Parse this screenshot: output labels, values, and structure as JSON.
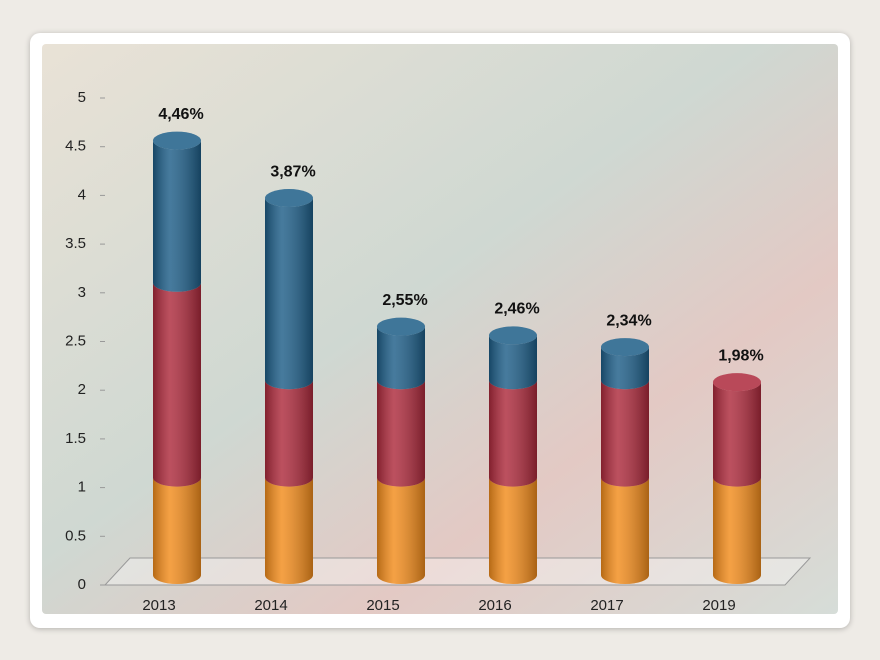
{
  "chart_data": {
    "type": "stacked-cylinder",
    "categories": [
      "2013",
      "2014",
      "2015",
      "2016",
      "2017",
      "2019"
    ],
    "series": [
      {
        "color": "#f28c1c",
        "values": [
          1,
          1,
          1,
          1,
          1,
          1
        ]
      },
      {
        "color": "#ad2a3c",
        "values": [
          2,
          1,
          1,
          1,
          1,
          0.98
        ]
      },
      {
        "color": "#1e5e88",
        "values": [
          1.46,
          1.87,
          0.55,
          0.46,
          0.34,
          null
        ]
      }
    ],
    "totals": {
      "values": [
        4.46,
        3.87,
        2.55,
        2.46,
        2.34,
        1.98
      ],
      "value_labels": [
        "4,46%",
        "3,87%",
        "2,55%",
        "2,46%",
        "2,34%",
        "1,98%"
      ]
    },
    "ylim": [
      0,
      5
    ],
    "yticks": [
      0,
      0.5,
      1,
      1.5,
      2,
      2.5,
      3,
      3.5,
      4,
      4.5,
      5
    ],
    "grid": false
  }
}
